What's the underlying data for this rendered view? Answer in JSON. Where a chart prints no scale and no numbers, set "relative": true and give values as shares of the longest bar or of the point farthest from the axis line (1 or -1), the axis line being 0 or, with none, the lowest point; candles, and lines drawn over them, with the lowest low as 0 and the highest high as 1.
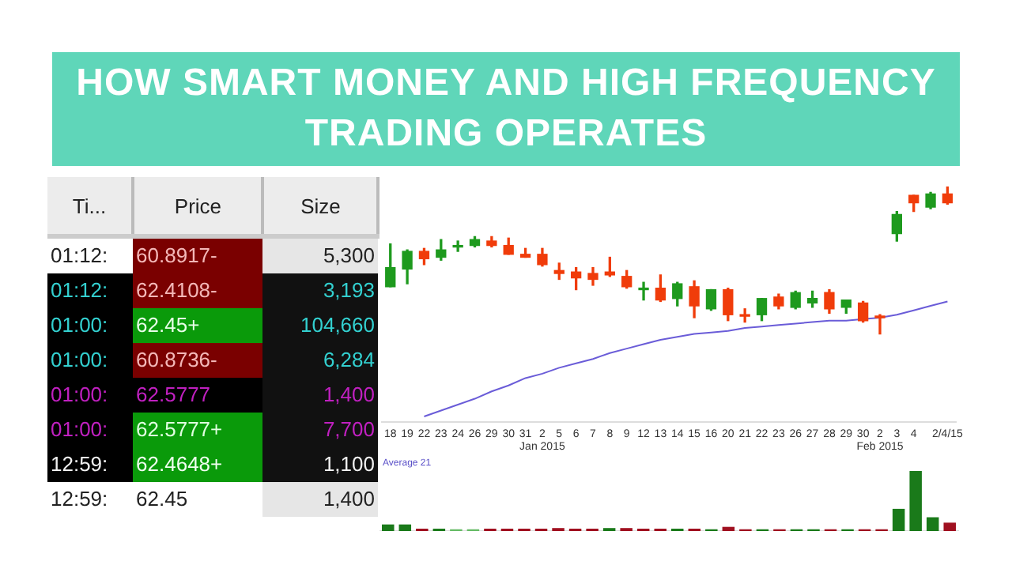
{
  "chart_data": [
    {
      "type": "other",
      "title": "HOW SMART MONEY AND HIGH FREQUENCY TRADING OPERATES",
      "categories": [
        "Ti...",
        "Price",
        "Size"
      ],
      "cell_labels": [
        [
          "01:12:",
          "60.8917-",
          "5,300"
        ],
        [
          "01:12:",
          "62.4108-",
          "3,193"
        ],
        [
          "01:00:",
          "62.45+",
          "104,660"
        ],
        [
          "01:00:",
          "60.8736-",
          "6,284"
        ],
        [
          "01:00:",
          "62.5777",
          "1,400"
        ],
        [
          "01:00:",
          "62.5777+",
          "7,700"
        ],
        [
          "12:59:",
          "62.4648+",
          "1,100"
        ],
        [
          "12:59:",
          "62.45",
          "1,400"
        ]
      ]
    },
    {
      "type": "candlestick",
      "relative": true,
      "grid": false,
      "legend": false,
      "categories": [
        "18",
        "19",
        "22",
        "23",
        "24",
        "26",
        "29",
        "30",
        "31",
        "2\nJan 2015",
        "5",
        "6",
        "7",
        "8",
        "9",
        "12",
        "13",
        "14",
        "15",
        "16",
        "20",
        "21",
        "22",
        "23",
        "26",
        "27",
        "28",
        "29",
        "30",
        "2\nFeb 2015",
        "3",
        "4",
        null,
        "2/4/15"
      ],
      "ohlc": [
        [
          0.32,
          0.61,
          0.32,
          0.45
        ],
        [
          0.44,
          0.57,
          0.34,
          0.56
        ],
        [
          0.56,
          0.58,
          0.47,
          0.51
        ],
        [
          0.52,
          0.64,
          0.5,
          0.57
        ],
        [
          0.6,
          0.63,
          0.56,
          0.6
        ],
        [
          0.6,
          0.66,
          0.59,
          0.64
        ],
        [
          0.63,
          0.66,
          0.59,
          0.6
        ],
        [
          0.6,
          0.65,
          0.54,
          0.54
        ],
        [
          0.54,
          0.58,
          0.52,
          0.52
        ],
        [
          0.54,
          0.58,
          0.46,
          0.47
        ],
        [
          0.43,
          0.48,
          0.37,
          0.41
        ],
        [
          0.42,
          0.45,
          0.3,
          0.38
        ],
        [
          0.41,
          0.45,
          0.33,
          0.37
        ],
        [
          0.42,
          0.52,
          0.39,
          0.4
        ],
        [
          0.39,
          0.43,
          0.31,
          0.32
        ],
        [
          0.3,
          0.35,
          0.23,
          0.31
        ],
        [
          0.31,
          0.4,
          0.22,
          0.23
        ],
        [
          0.24,
          0.35,
          0.19,
          0.34
        ],
        [
          0.32,
          0.36,
          0.11,
          0.19
        ],
        [
          0.17,
          0.3,
          0.16,
          0.3
        ],
        [
          0.3,
          0.31,
          0.09,
          0.13
        ],
        [
          0.13,
          0.17,
          0.08,
          0.12
        ],
        [
          0.13,
          0.24,
          0.09,
          0.24
        ],
        [
          0.25,
          0.27,
          0.17,
          0.19
        ],
        [
          0.18,
          0.29,
          0.17,
          0.28
        ],
        [
          0.21,
          0.29,
          0.18,
          0.24
        ],
        [
          0.28,
          0.3,
          0.14,
          0.17
        ],
        [
          0.18,
          0.23,
          0.14,
          0.23
        ],
        [
          0.21,
          0.22,
          0.08,
          0.09
        ],
        [
          0.12,
          0.13,
          0,
          0.11
        ],
        [
          0.68,
          0.83,
          0.63,
          0.81
        ],
        [
          0.94,
          0.94,
          0.83,
          0.89
        ],
        [
          0.86,
          0.96,
          0.85,
          0.95
        ],
        [
          0.95,
          1,
          0.88,
          0.89
        ]
      ],
      "colors": [
        "#1e9a1e",
        "#1e9a1e",
        "#f03c0a",
        "#1e9a1e",
        "#1e9a1e",
        "#1e9a1e",
        "#f03c0a",
        "#f03c0a",
        "#f03c0a",
        "#f03c0a",
        "#f03c0a",
        "#f03c0a",
        "#f03c0a",
        "#f03c0a",
        "#f03c0a",
        "#1e9a1e",
        "#f03c0a",
        "#1e9a1e",
        "#f03c0a",
        "#1e9a1e",
        "#f03c0a",
        "#f03c0a",
        "#1e9a1e",
        "#f03c0a",
        "#1e9a1e",
        "#1e9a1e",
        "#f03c0a",
        "#1e9a1e",
        "#f03c0a",
        "#f03c0a",
        "#1e9a1e",
        "#f03c0a",
        "#1e9a1e",
        "#f03c0a"
      ],
      "series": [
        {
          "type": "line",
          "color": "#6a5cd8",
          "marker": "none",
          "values": [
            null,
            null,
            -0.56,
            -0.52,
            -0.48,
            -0.44,
            -0.39,
            -0.35,
            -0.3,
            -0.27,
            -0.23,
            -0.2,
            -0.17,
            -0.13,
            -0.1,
            -0.07,
            -0.04,
            -0.02,
            0,
            0.01,
            0.02,
            0.04,
            0.05,
            0.06,
            0.07,
            0.08,
            0.09,
            0.09,
            0.1,
            0.11,
            0.13,
            0.16,
            0.19,
            0.22
          ]
        }
      ]
    },
    {
      "type": "bar",
      "relative": true,
      "tick_labels": false,
      "grid": false,
      "legend": false,
      "annotations": [
        "Average 21"
      ],
      "categories": [
        null,
        null,
        null,
        null,
        null,
        null,
        null,
        null,
        null,
        null,
        null,
        null,
        null,
        null,
        null,
        null,
        null,
        null,
        null,
        null,
        null,
        null,
        null,
        null,
        null,
        null,
        null,
        null,
        null,
        null,
        null,
        null,
        null,
        null
      ],
      "values": [
        0.11,
        0.11,
        0.04,
        0.04,
        0.03,
        0.03,
        0.04,
        0.04,
        0.04,
        0.04,
        0.05,
        0.04,
        0.04,
        0.05,
        0.05,
        0.04,
        0.04,
        0.04,
        0.04,
        0.03,
        0.07,
        0.03,
        0.03,
        0.03,
        0.03,
        0.03,
        0.03,
        0.03,
        0.03,
        0.03,
        0.37,
        1,
        0.23,
        0.14
      ],
      "colors": [
        "#1a7a1a",
        "#1a7a1a",
        "#a01020",
        "#1a7a1a",
        "#66bb66",
        "#66bb66",
        "#a01020",
        "#a01020",
        "#a01020",
        "#a01020",
        "#a01020",
        "#a01020",
        "#a01020",
        "#1a7a1a",
        "#a01020",
        "#a01020",
        "#a01020",
        "#1a7a1a",
        "#a01020",
        "#1a7a1a",
        "#a01020",
        "#a01020",
        "#1a7a1a",
        "#a01020",
        "#1a7a1a",
        "#1a7a1a",
        "#a01020",
        "#1a7a1a",
        "#a01020",
        "#a01020",
        "#1a7a1a",
        "#1a7a1a",
        "#1a7a1a",
        "#a01020"
      ]
    }
  ]
}
